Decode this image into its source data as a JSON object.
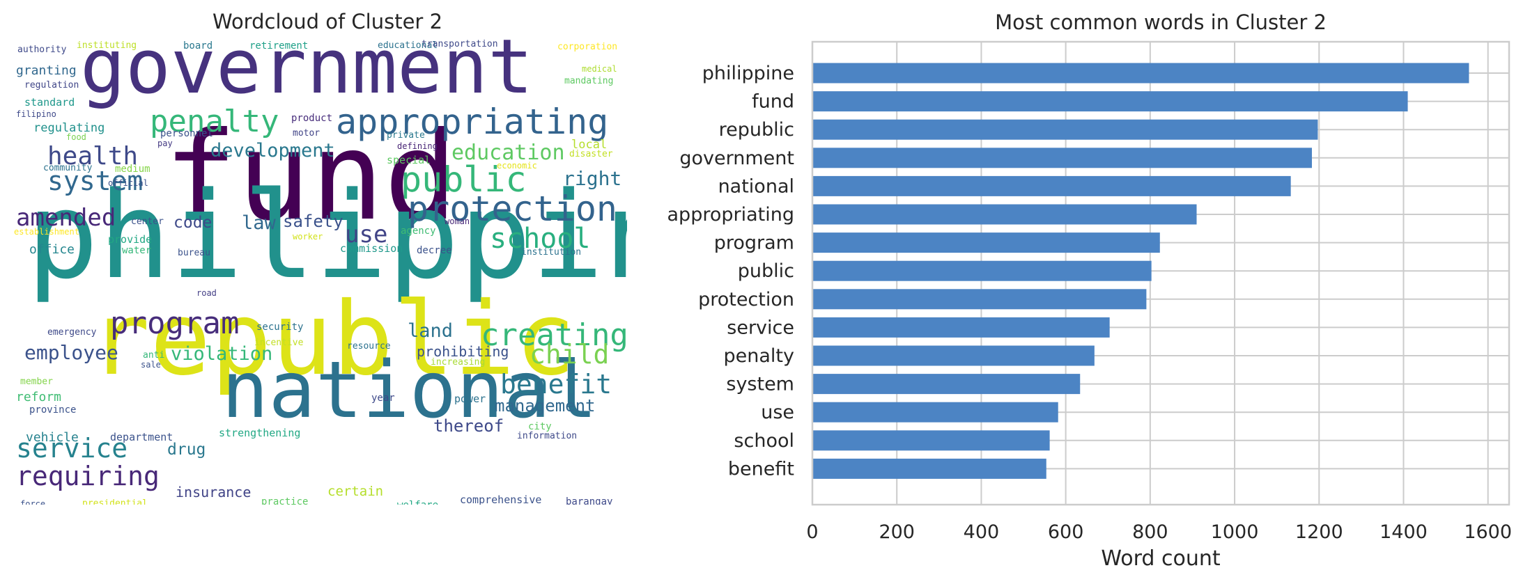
{
  "wordcloud": {
    "title": "Wordcloud of Cluster 2",
    "colors": [
      "#440154",
      "#3b528b",
      "#21918c",
      "#5ec962",
      "#fde725",
      "#46327e",
      "#2c728e",
      "#7ad151"
    ],
    "words": [
      {
        "text": "government",
        "c": "#46327e"
      },
      {
        "text": "fund",
        "c": "#440154"
      },
      {
        "text": "philippine",
        "c": "#21918c"
      },
      {
        "text": "republic",
        "c": "#dde318"
      },
      {
        "text": "national",
        "c": "#2c728e"
      },
      {
        "text": "appropriating",
        "c": "#33638d"
      },
      {
        "text": "penalty",
        "c": "#35b779"
      },
      {
        "text": "protection",
        "c": "#33638d"
      },
      {
        "text": "public",
        "c": "#35b779"
      },
      {
        "text": "health",
        "c": "#3e4989"
      },
      {
        "text": "system",
        "c": "#31688e"
      },
      {
        "text": "development",
        "c": "#2a788e"
      },
      {
        "text": "education",
        "c": "#5ec962"
      },
      {
        "text": "right",
        "c": "#2c728e"
      },
      {
        "text": "amended",
        "c": "#482878"
      },
      {
        "text": "school",
        "c": "#29af7f"
      },
      {
        "text": "program",
        "c": "#472d7b"
      },
      {
        "text": "creating",
        "c": "#35b779"
      },
      {
        "text": "child",
        "c": "#7ad151"
      },
      {
        "text": "benefit",
        "c": "#2a788e"
      },
      {
        "text": "service",
        "c": "#26828e"
      },
      {
        "text": "requiring",
        "c": "#482878"
      },
      {
        "text": "employee",
        "c": "#3b528b"
      },
      {
        "text": "violation",
        "c": "#35b779"
      },
      {
        "text": "use",
        "c": "#414487"
      },
      {
        "text": "law",
        "c": "#31688e"
      },
      {
        "text": "safety",
        "c": "#3b528b"
      },
      {
        "text": "code",
        "c": "#3e4989"
      },
      {
        "text": "land",
        "c": "#2c728e"
      },
      {
        "text": "management",
        "c": "#31688e"
      },
      {
        "text": "thereof",
        "c": "#3e4989"
      },
      {
        "text": "drug",
        "c": "#2a788e"
      },
      {
        "text": "insurance",
        "c": "#414487"
      },
      {
        "text": "certain",
        "c": "#b5de2b"
      },
      {
        "text": "prohibiting",
        "c": "#3b528b"
      },
      {
        "text": "authority",
        "c": "#3e4989"
      },
      {
        "text": "instituting",
        "c": "#bddf26"
      },
      {
        "text": "board",
        "c": "#2a788e"
      },
      {
        "text": "retirement",
        "c": "#1fa088"
      },
      {
        "text": "educational",
        "c": "#2c728e"
      },
      {
        "text": "transportation",
        "c": "#3e4989"
      },
      {
        "text": "corporation",
        "c": "#fde725"
      },
      {
        "text": "medical",
        "c": "#addc30"
      },
      {
        "text": "mandating",
        "c": "#5ec962"
      },
      {
        "text": "granting",
        "c": "#31688e"
      },
      {
        "text": "regulation",
        "c": "#404688"
      },
      {
        "text": "standard",
        "c": "#1f988b"
      },
      {
        "text": "filipino",
        "c": "#3e4989"
      },
      {
        "text": "regulating",
        "c": "#21918c"
      },
      {
        "text": "food",
        "c": "#7ad151"
      },
      {
        "text": "personnel",
        "c": "#3b528b"
      },
      {
        "text": "pay",
        "c": "#443983"
      },
      {
        "text": "product",
        "c": "#472d7b"
      },
      {
        "text": "motor",
        "c": "#414487"
      },
      {
        "text": "private",
        "c": "#2a788e"
      },
      {
        "text": "defining",
        "c": "#482475"
      },
      {
        "text": "local",
        "c": "#b5de2b"
      },
      {
        "text": "disaster",
        "c": "#c2df23"
      },
      {
        "text": "economic",
        "c": "#e5e419"
      },
      {
        "text": "special",
        "c": "#5ec962"
      },
      {
        "text": "community",
        "c": "#2c728e"
      },
      {
        "text": "medium",
        "c": "#86d549"
      },
      {
        "text": "official",
        "c": "#3b528b"
      },
      {
        "text": "establishment",
        "c": "#fde725"
      },
      {
        "text": "center",
        "c": "#3b528b"
      },
      {
        "text": "woman",
        "c": "#482878"
      },
      {
        "text": "agency",
        "c": "#3fbc73"
      },
      {
        "text": "worker",
        "c": "#d2e21b"
      },
      {
        "text": "office",
        "c": "#24868e"
      },
      {
        "text": "provide",
        "c": "#22a884"
      },
      {
        "text": "water",
        "c": "#35b779"
      },
      {
        "text": "bureau",
        "c": "#3b528b"
      },
      {
        "text": "commission",
        "c": "#1f988b"
      },
      {
        "text": "decree",
        "c": "#3b528b"
      },
      {
        "text": "institution",
        "c": "#2c728e"
      },
      {
        "text": "road",
        "c": "#433e85"
      },
      {
        "text": "emergency",
        "c": "#3e4989"
      },
      {
        "text": "security",
        "c": "#2c728e"
      },
      {
        "text": "incentive",
        "c": "#c2df23"
      },
      {
        "text": "resource",
        "c": "#2c728e"
      },
      {
        "text": "anti",
        "c": "#35b779"
      },
      {
        "text": "sale",
        "c": "#3b528b"
      },
      {
        "text": "increasing",
        "c": "#a8db34"
      },
      {
        "text": "member",
        "c": "#84d44b"
      },
      {
        "text": "reform",
        "c": "#3fbc73"
      },
      {
        "text": "province",
        "c": "#3b528b"
      },
      {
        "text": "year",
        "c": "#3e4989"
      },
      {
        "text": "power",
        "c": "#2c728e"
      },
      {
        "text": "vehicle",
        "c": "#26828e"
      },
      {
        "text": "department",
        "c": "#3b528b"
      },
      {
        "text": "strengthening",
        "c": "#22a884"
      },
      {
        "text": "city",
        "c": "#5ec962"
      },
      {
        "text": "information",
        "c": "#3e4989"
      },
      {
        "text": "force",
        "c": "#3b528b"
      },
      {
        "text": "presidential",
        "c": "#d2e21b"
      },
      {
        "text": "practice",
        "c": "#5ec962"
      },
      {
        "text": "welfare",
        "c": "#22a884"
      },
      {
        "text": "comprehensive",
        "c": "#3b528b"
      },
      {
        "text": "barangay",
        "c": "#3e4989"
      }
    ]
  },
  "chart_data": {
    "type": "bar",
    "orientation": "horizontal",
    "title": "Most common words in Cluster 2",
    "xlabel": "Word count",
    "ylabel": "",
    "xlim": [
      0,
      1650
    ],
    "xticks": [
      0,
      200,
      400,
      600,
      800,
      1000,
      1200,
      1400,
      1600
    ],
    "grid": true,
    "bar_color": "#4c84c4",
    "categories": [
      "philippine",
      "fund",
      "republic",
      "government",
      "national",
      "appropriating",
      "program",
      "public",
      "protection",
      "service",
      "penalty",
      "system",
      "use",
      "school",
      "benefit"
    ],
    "values": [
      1555,
      1410,
      1197,
      1183,
      1133,
      910,
      823,
      803,
      791,
      704,
      668,
      634,
      582,
      562,
      554
    ]
  }
}
